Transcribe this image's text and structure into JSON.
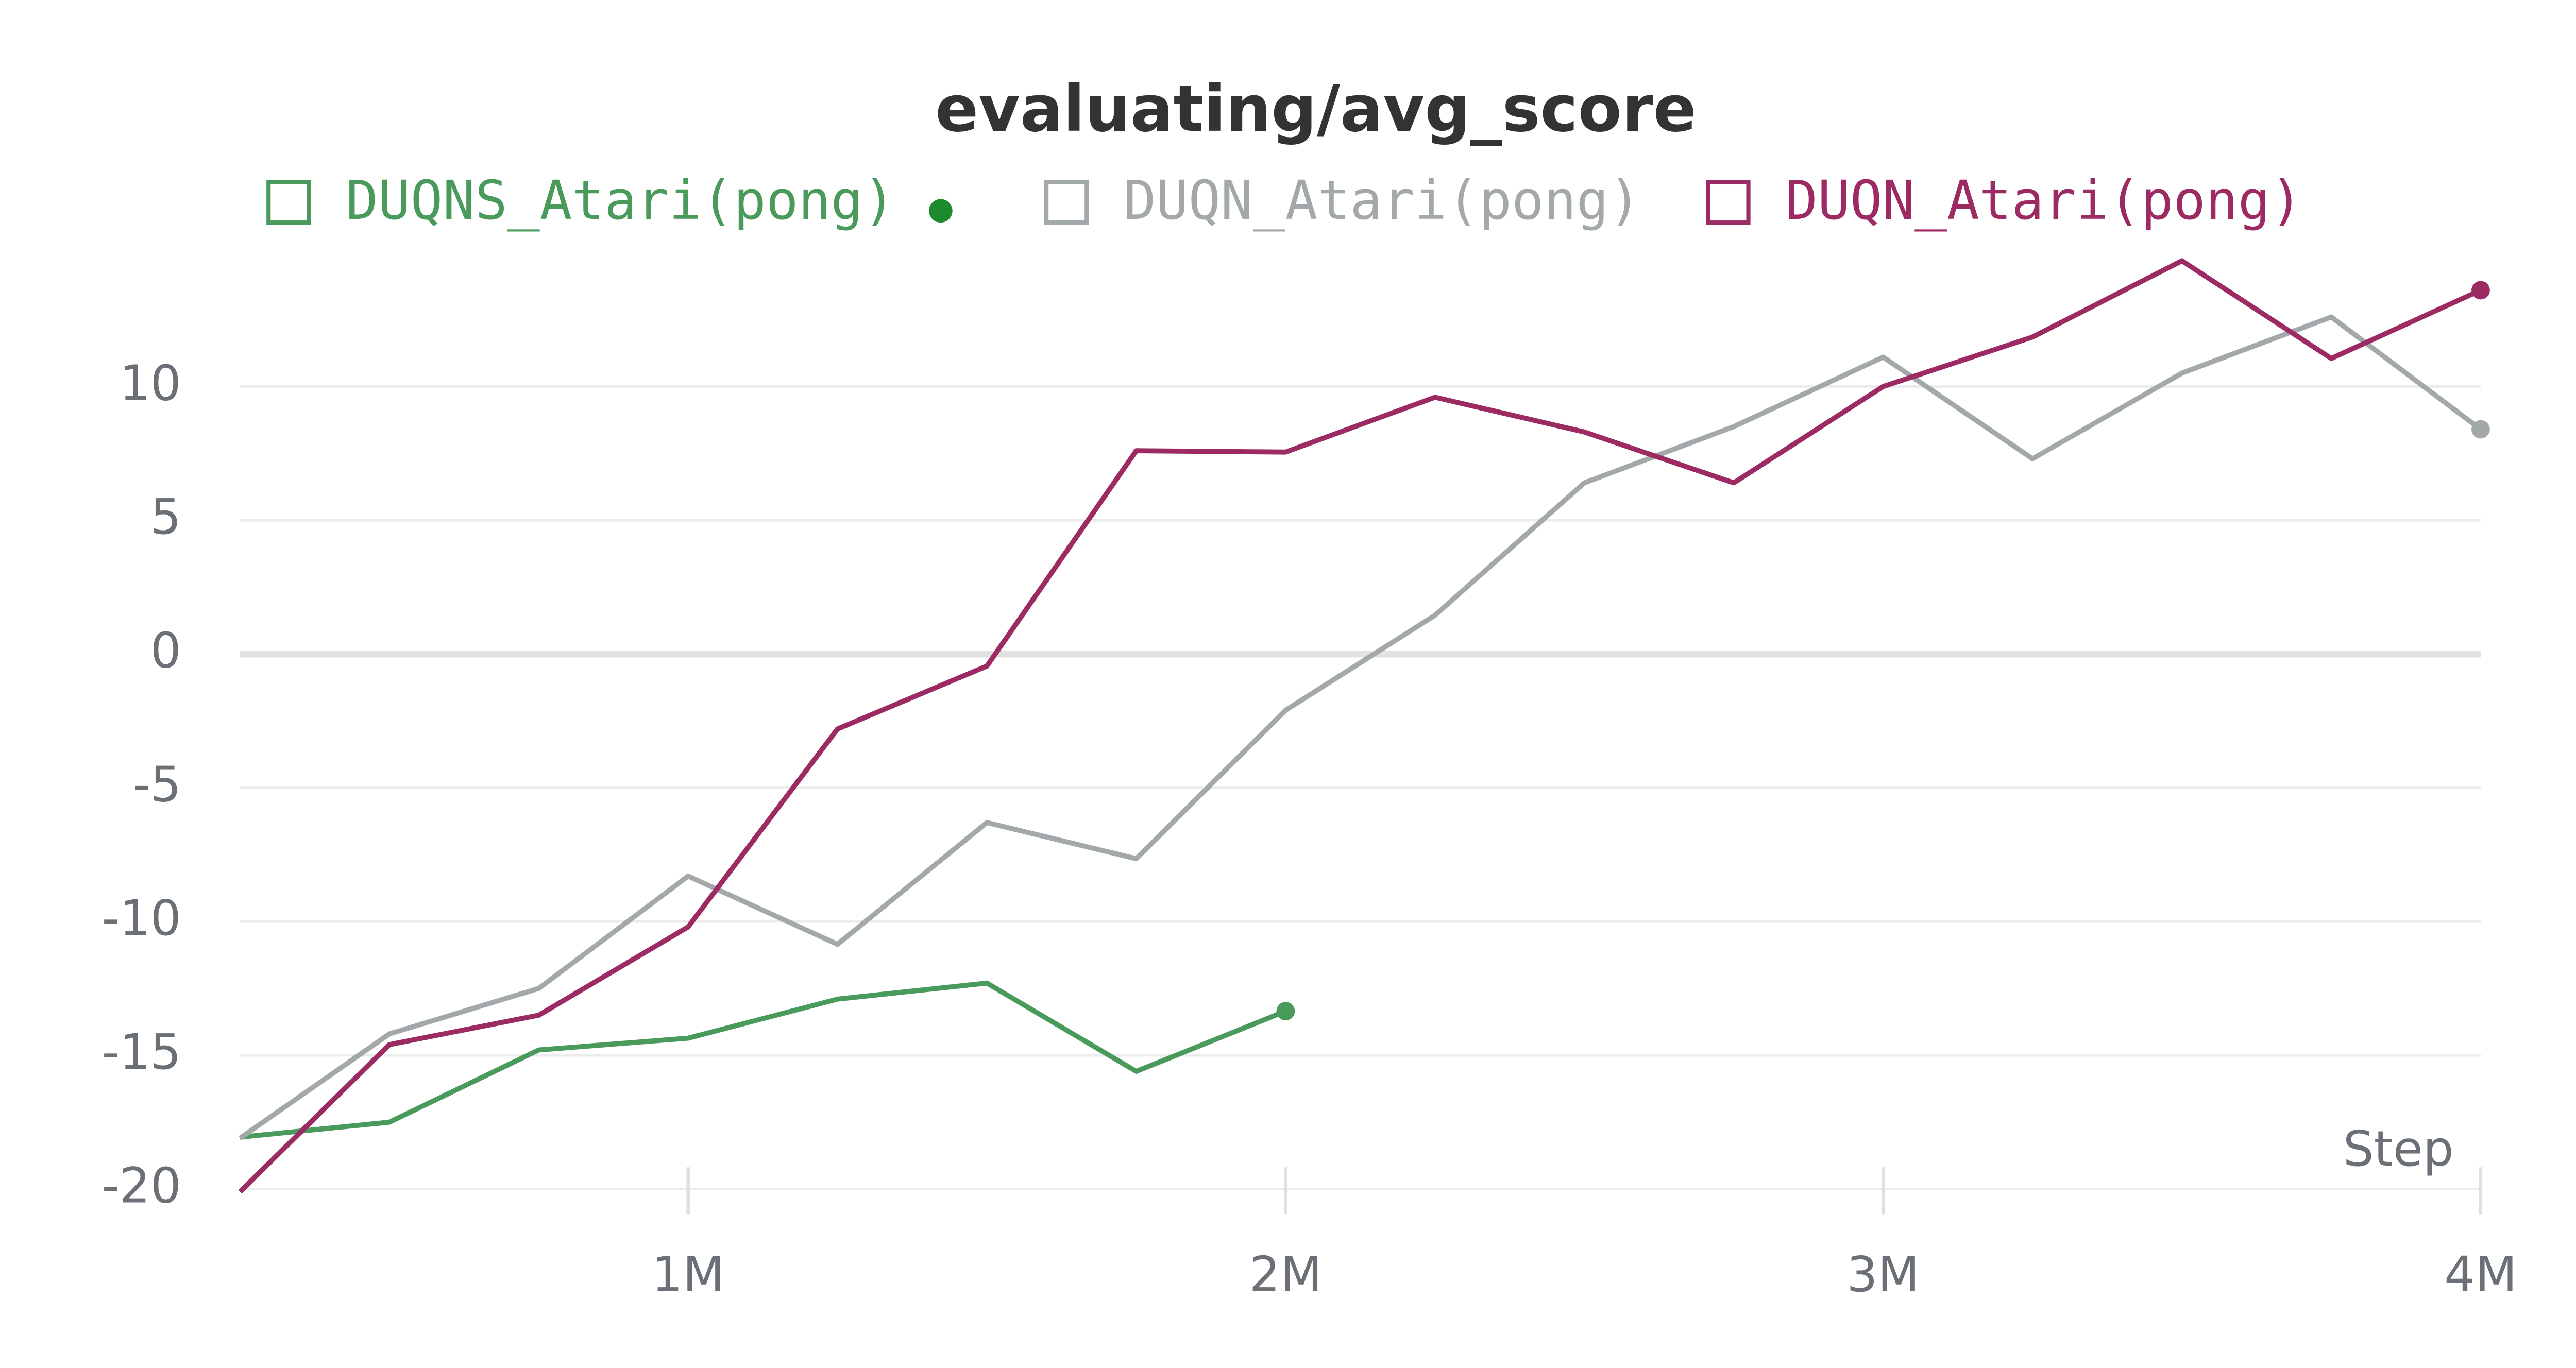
{
  "chart_data": {
    "type": "line",
    "title": "evaluating/avg_score",
    "xlabel": "Step",
    "x": [
      250000,
      500000,
      750000,
      1000000,
      1250000,
      1500000,
      1750000,
      2000000,
      2250000,
      2500000,
      2750000,
      3000000,
      3250000,
      3500000,
      3750000,
      4000000
    ],
    "series": [
      {
        "name": "DUQNS_Atari(pong)",
        "color": "#4a9a5c",
        "values": [
          -18.06,
          -17.5,
          -14.8,
          -14.36,
          -12.9,
          -12.3,
          -15.6,
          -13.35,
          null,
          null,
          null,
          null,
          null,
          null,
          null,
          null
        ]
      },
      {
        "name": "DUQN_Atari(pong)",
        "color": "#a3a8ab",
        "values": [
          -18.1,
          -14.2,
          -12.5,
          -8.3,
          -10.85,
          -6.3,
          -7.65,
          -2.1,
          1.45,
          6.4,
          8.5,
          11.1,
          7.3,
          10.5,
          12.6,
          8.4
        ]
      },
      {
        "name": "DUQN_Atari(pong)",
        "color": "#9c2a63",
        "values": [
          -20.1,
          -14.6,
          -13.5,
          -10.2,
          -2.8,
          -0.45,
          7.6,
          7.55,
          9.6,
          8.3,
          6.4,
          10,
          11.85,
          14.7,
          11.05,
          13.6
        ]
      }
    ],
    "xlim": [
      250000,
      4000000
    ],
    "xticks": [
      {
        "value": 1000000,
        "label": "1M"
      },
      {
        "value": 2000000,
        "label": "2M"
      },
      {
        "value": 3000000,
        "label": "3M"
      },
      {
        "value": 4000000,
        "label": "4M"
      }
    ],
    "ylim": [
      -20,
      15
    ],
    "yticks": [
      -20,
      -15,
      -10,
      -5,
      0,
      5,
      10
    ],
    "grid": true
  }
}
